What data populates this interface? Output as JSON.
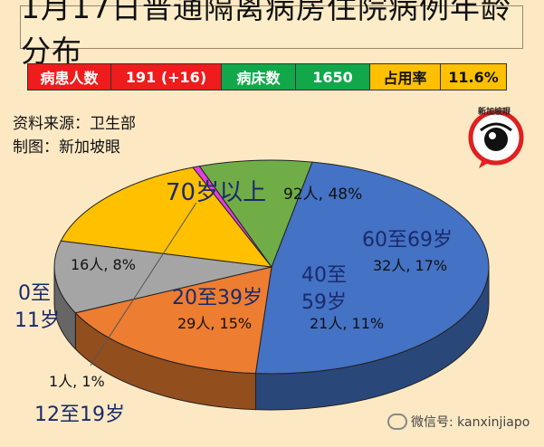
{
  "title": "1月17日普通隔离病房住院病例年龄分布",
  "stats": {
    "patients_label": "病患人数",
    "patients_value": "191 (+16)",
    "beds_label": "病床数",
    "beds_value": "1650",
    "occupancy_label": "占用率",
    "occupancy_value": "11.6%"
  },
  "source": {
    "line1": "资料来源：卫生部",
    "line2": "制图：新加坡眼"
  },
  "logo": {
    "text": "新加坡眼",
    "icon": "eye-logo-icon"
  },
  "watermark": {
    "text": "微信号: kanxinjiapo",
    "icon": "wechat-icon"
  },
  "colors": {
    "blue": "#4472c4",
    "orange": "#ed7d31",
    "gray": "#a5a5a5",
    "yellow": "#ffc000",
    "magenta": "#e040e0",
    "green": "#70ad47"
  },
  "chart_data": {
    "type": "pie",
    "title": "1月17日普通隔离病房住院病例年龄分布",
    "slices": [
      {
        "name": "70岁以上",
        "value": 92,
        "percent": 48,
        "label": "92人, 48%",
        "color": "#4472c4"
      },
      {
        "name": "60至69岁",
        "value": 32,
        "percent": 17,
        "label": "32人, 17%",
        "color": "#ed7d31"
      },
      {
        "name": "40至59岁",
        "value": 21,
        "percent": 11,
        "label": "21人, 11%",
        "color": "#a5a5a5"
      },
      {
        "name": "20至39岁",
        "value": 29,
        "percent": 15,
        "label": "29人, 15%",
        "color": "#ffc000"
      },
      {
        "name": "12至19岁",
        "value": 1,
        "percent": 1,
        "label": "1人, 1%",
        "color": "#e040e0"
      },
      {
        "name": "0至11岁",
        "value": 16,
        "percent": 8,
        "label": "16人, 8%",
        "color": "#70ad47"
      }
    ],
    "category_labels": {
      "age70": "70岁以上",
      "age60": "60至69岁",
      "age40a": "40至",
      "age40b": "59岁",
      "age20": "20至39岁",
      "age12": "12至19岁",
      "age0a": "0至",
      "age0b": "11岁"
    }
  }
}
